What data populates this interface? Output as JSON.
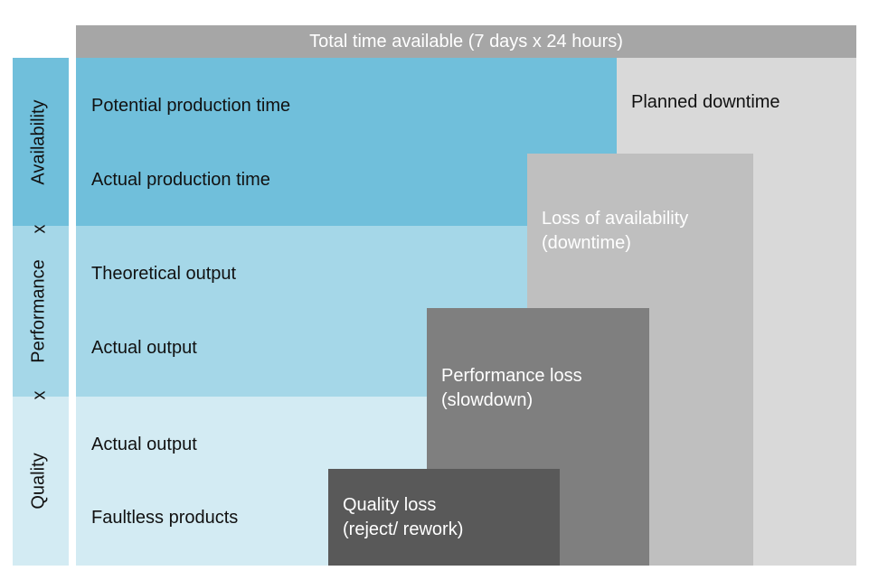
{
  "header": {
    "title": "Total time available (7 days x 24 hours)"
  },
  "sidebar": {
    "availability": "Availability",
    "performance": "Performance",
    "quality": "Quality",
    "operator_1": "x",
    "operator_2": "x"
  },
  "bands": {
    "availability": {
      "line1": "Potential production time",
      "line2": "Actual production time"
    },
    "performance": {
      "line1": "Theoretical output",
      "line2": "Actual output"
    },
    "quality": {
      "line1": "Actual output",
      "line2": "Faultless products"
    }
  },
  "losses": {
    "planned": "Planned downtime",
    "availability": {
      "line1": "Loss of availability",
      "line2": "(downtime)"
    },
    "performance": {
      "line1": "Performance loss",
      "line2": "(slowdown)"
    },
    "quality": {
      "line1": "Quality loss",
      "line2": "(reject/ rework)"
    }
  },
  "colors": {
    "header": "#a6a6a6",
    "availability": "#70bfdb",
    "performance": "#a5d7e8",
    "quality": "#d3ebf3",
    "planned_downtime": "#d9d9d9",
    "availability_loss": "#bfbfbf",
    "performance_loss": "#7f7f7f",
    "quality_loss": "#595959"
  }
}
